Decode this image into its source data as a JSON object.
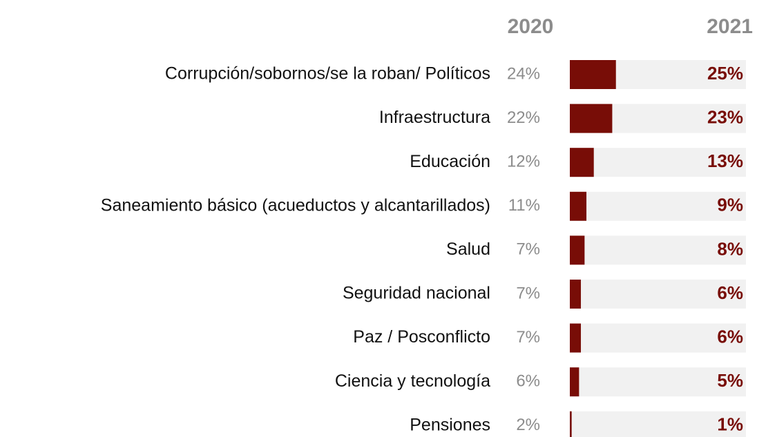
{
  "chart_data": {
    "type": "bar",
    "categories": [
      "Corrupción/sobornos/se la roban/ Políticos",
      "Infraestructura",
      "Educación",
      "Saneamiento básico (acueductos y alcantarillados)",
      "Salud",
      "Seguridad nacional",
      "Paz / Posconflicto",
      "Ciencia y tecnología",
      "Pensiones"
    ],
    "series": [
      {
        "name": "2020",
        "color": "#8c8c8c",
        "values": [
          24,
          22,
          12,
          11,
          7,
          7,
          7,
          6,
          2
        ],
        "value_labels": [
          "24%",
          "22%",
          "12%",
          "11%",
          "7%",
          "7%",
          "7%",
          "6%",
          "2%"
        ]
      },
      {
        "name": "2021",
        "color": "#780d07",
        "values": [
          25,
          23,
          13,
          9,
          8,
          6,
          6,
          5,
          1
        ],
        "value_labels": [
          "25%",
          "23%",
          "13%",
          "9%",
          "8%",
          "6%",
          "6%",
          "5%",
          "1%"
        ]
      }
    ]
  }
}
